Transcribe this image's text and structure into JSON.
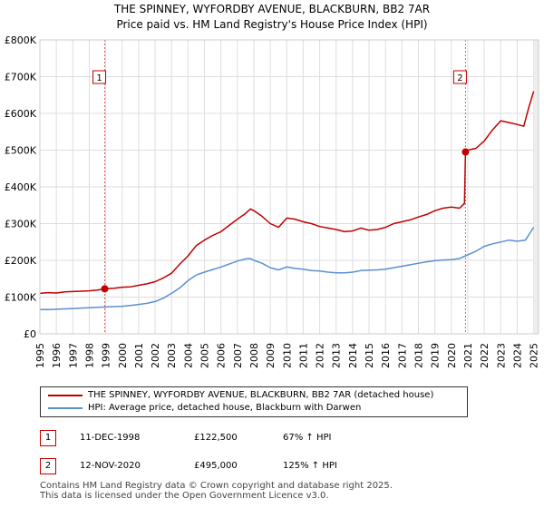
{
  "title": {
    "line1": "THE SPINNEY, WYFORDBY AVENUE, BLACKBURN, BB2 7AR",
    "line2": "Price paid vs. HM Land Registry's House Price Index (HPI)"
  },
  "colors": {
    "property": "#c00000",
    "hpi": "#5b8fd0",
    "grid": "#dddddd",
    "marker_line": "#e06060"
  },
  "legend": {
    "property_label": "THE SPINNEY, WYFORDBY AVENUE, BLACKBURN, BB2 7AR (detached house)",
    "hpi_label": "HPI: Average price, detached house, Blackburn with Darwen"
  },
  "sales": [
    {
      "id": "1",
      "date": "11-DEC-1998",
      "price": "£122,500",
      "hpi_change": "67% ↑ HPI"
    },
    {
      "id": "2",
      "date": "12-NOV-2020",
      "price": "£495,000",
      "hpi_change": "125% ↑ HPI"
    }
  ],
  "footer": {
    "line1": "Contains HM Land Registry data © Crown copyright and database right 2025.",
    "line2": "This data is licensed under the Open Government Licence v3.0."
  },
  "chart_data": {
    "type": "line",
    "title": "THE SPINNEY, WYFORDBY AVENUE, BLACKBURN, BB2 7AR",
    "xlim": [
      1995,
      2025.3
    ],
    "ylim": [
      0,
      800000
    ],
    "y_ticks": [
      0,
      100000,
      200000,
      300000,
      400000,
      500000,
      600000,
      700000,
      800000
    ],
    "y_tick_labels": [
      "£0",
      "£100K",
      "£200K",
      "£300K",
      "£400K",
      "£500K",
      "£600K",
      "£700K",
      "£800K"
    ],
    "x_ticks": [
      1995,
      1996,
      1997,
      1998,
      1999,
      2000,
      2001,
      2002,
      2003,
      2004,
      2005,
      2006,
      2007,
      2008,
      2009,
      2010,
      2011,
      2012,
      2013,
      2014,
      2015,
      2016,
      2017,
      2018,
      2019,
      2020,
      2021,
      2022,
      2023,
      2024,
      2025
    ],
    "x_tick_labels": [
      "1995",
      "1996",
      "1997",
      "1998",
      "1999",
      "2000",
      "2001",
      "2002",
      "2003",
      "2004",
      "2005",
      "2006",
      "2007",
      "2008",
      "2009",
      "2010",
      "2011",
      "2012",
      "2013",
      "2014",
      "2015",
      "2016",
      "2017",
      "2018",
      "2019",
      "2020",
      "2021",
      "2022",
      "2023",
      "2024",
      "2025"
    ],
    "series": [
      {
        "name": "THE SPINNEY, WYFORDBY AVENUE, BLACKBURN, BB2 7AR (detached house)",
        "x": [
          1995.0,
          1995.5,
          1996.0,
          1996.5,
          1997.0,
          1997.5,
          1998.0,
          1998.5,
          1998.94,
          1999.5,
          2000.0,
          2000.5,
          2001.0,
          2001.5,
          2002.0,
          2002.5,
          2003.0,
          2003.5,
          2004.0,
          2004.5,
          2005.0,
          2005.5,
          2006.0,
          2006.5,
          2007.0,
          2007.5,
          2007.8,
          2008.0,
          2008.5,
          2009.0,
          2009.5,
          2010.0,
          2010.5,
          2011.0,
          2011.5,
          2012.0,
          2012.5,
          2013.0,
          2013.5,
          2014.0,
          2014.5,
          2015.0,
          2015.5,
          2016.0,
          2016.5,
          2017.0,
          2017.5,
          2018.0,
          2018.5,
          2019.0,
          2019.5,
          2020.0,
          2020.5,
          2020.8,
          2020.86,
          2021.0,
          2021.5,
          2022.0,
          2022.5,
          2023.0,
          2023.5,
          2024.0,
          2024.4,
          2024.7,
          2025.0
        ],
        "values": [
          110000,
          112000,
          111000,
          114000,
          115000,
          116000,
          117000,
          119000,
          122500,
          124000,
          127000,
          128000,
          132000,
          136000,
          142000,
          152000,
          165000,
          190000,
          212000,
          240000,
          255000,
          268000,
          278000,
          295000,
          312000,
          328000,
          340000,
          335000,
          320000,
          300000,
          290000,
          315000,
          312000,
          305000,
          300000,
          292000,
          288000,
          284000,
          278000,
          280000,
          288000,
          282000,
          284000,
          290000,
          300000,
          305000,
          310000,
          318000,
          325000,
          335000,
          342000,
          345000,
          342000,
          355000,
          495000,
          500000,
          505000,
          525000,
          555000,
          580000,
          575000,
          570000,
          565000,
          615000,
          660000
        ]
      },
      {
        "name": "HPI: Average price, detached house, Blackburn with Darwen",
        "x": [
          1995.0,
          1995.5,
          1996.0,
          1996.5,
          1997.0,
          1997.5,
          1998.0,
          1998.5,
          1999.0,
          1999.5,
          2000.0,
          2000.5,
          2001.0,
          2001.5,
          2002.0,
          2002.5,
          2003.0,
          2003.5,
          2004.0,
          2004.5,
          2005.0,
          2005.5,
          2006.0,
          2006.5,
          2007.0,
          2007.5,
          2007.8,
          2008.0,
          2008.5,
          2009.0,
          2009.5,
          2010.0,
          2010.5,
          2011.0,
          2011.5,
          2012.0,
          2012.5,
          2013.0,
          2013.5,
          2014.0,
          2014.5,
          2015.0,
          2015.5,
          2016.0,
          2016.5,
          2017.0,
          2017.5,
          2018.0,
          2018.5,
          2019.0,
          2019.5,
          2020.0,
          2020.5,
          2021.0,
          2021.5,
          2022.0,
          2022.5,
          2023.0,
          2023.5,
          2024.0,
          2024.5,
          2025.0
        ],
        "values": [
          66000,
          66000,
          67000,
          68000,
          69000,
          70000,
          71000,
          72000,
          73000,
          74000,
          75000,
          77000,
          80000,
          83000,
          88000,
          97000,
          110000,
          125000,
          145000,
          160000,
          168000,
          175000,
          182000,
          190000,
          198000,
          204000,
          205000,
          200000,
          192000,
          180000,
          174000,
          182000,
          178000,
          176000,
          172000,
          171000,
          168000,
          166000,
          166000,
          168000,
          172000,
          173000,
          174000,
          176000,
          180000,
          184000,
          188000,
          192000,
          196000,
          199000,
          201000,
          202000,
          205000,
          215000,
          225000,
          238000,
          245000,
          250000,
          255000,
          252000,
          255000,
          290000
        ]
      }
    ],
    "markers": [
      {
        "label": "1",
        "x": 1998.94,
        "y": 122500
      },
      {
        "label": "2",
        "x": 2020.86,
        "y": 495000
      }
    ]
  }
}
